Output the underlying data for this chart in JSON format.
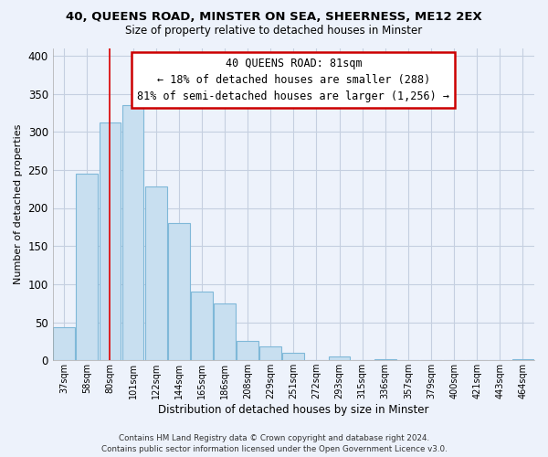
{
  "title": "40, QUEENS ROAD, MINSTER ON SEA, SHEERNESS, ME12 2EX",
  "subtitle": "Size of property relative to detached houses in Minster",
  "xlabel": "Distribution of detached houses by size in Minster",
  "ylabel": "Number of detached properties",
  "bar_labels": [
    "37sqm",
    "58sqm",
    "80sqm",
    "101sqm",
    "122sqm",
    "144sqm",
    "165sqm",
    "186sqm",
    "208sqm",
    "229sqm",
    "251sqm",
    "272sqm",
    "293sqm",
    "315sqm",
    "336sqm",
    "357sqm",
    "379sqm",
    "400sqm",
    "421sqm",
    "443sqm",
    "464sqm"
  ],
  "bar_values": [
    43,
    245,
    312,
    335,
    228,
    180,
    90,
    75,
    25,
    18,
    10,
    0,
    5,
    0,
    2,
    0,
    0,
    0,
    0,
    0,
    2
  ],
  "bar_color": "#c8dff0",
  "bar_edge_color": "#7fb8d8",
  "highlight_index": 2,
  "highlight_color": "#dd0000",
  "ylim": [
    0,
    410
  ],
  "yticks": [
    0,
    50,
    100,
    150,
    200,
    250,
    300,
    350,
    400
  ],
  "annotation_line1": "40 QUEENS ROAD: 81sqm",
  "annotation_line2": "← 18% of detached houses are smaller (288)",
  "annotation_line3": "81% of semi-detached houses are larger (1,256) →",
  "footer1": "Contains HM Land Registry data © Crown copyright and database right 2024.",
  "footer2": "Contains public sector information licensed under the Open Government Licence v3.0.",
  "bg_color": "#edf2fb",
  "plot_bg_color": "#edf2fb",
  "annotation_box_facecolor": "#ffffff",
  "annotation_box_edgecolor": "#cc0000",
  "grid_color": "#c5cfe0",
  "title_fontsize": 9.5,
  "subtitle_fontsize": 8.5,
  "xlabel_fontsize": 8.5,
  "ylabel_fontsize": 8.0,
  "annotation_fontsize": 8.5
}
